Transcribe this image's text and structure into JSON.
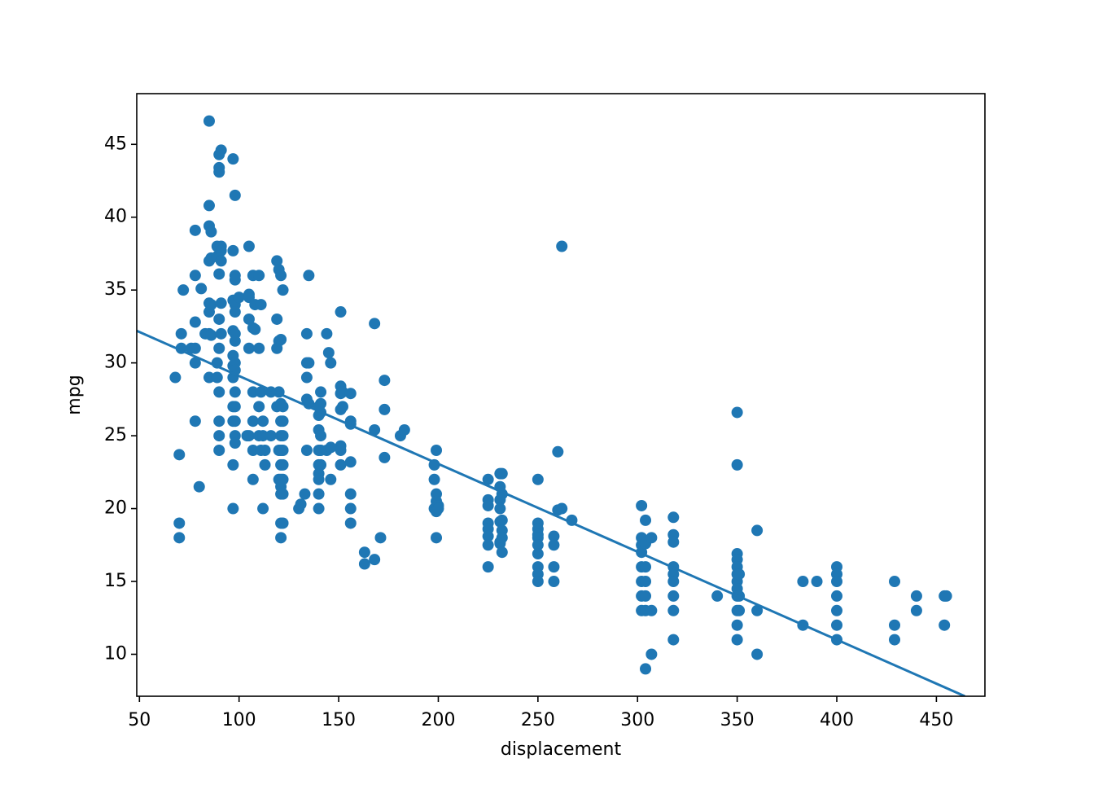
{
  "chart_data": {
    "type": "scatter",
    "xlabel": "displacement",
    "ylabel": "mpg",
    "color": "#1f77b4",
    "x": [
      68,
      70,
      70,
      70,
      71,
      71,
      72,
      76,
      78,
      78,
      78,
      78,
      78,
      78,
      80,
      81,
      83,
      85,
      85,
      85,
      85,
      85,
      85,
      85,
      85,
      86,
      86,
      86,
      86,
      89,
      89,
      89,
      89,
      90,
      90,
      90,
      90,
      90,
      90,
      90,
      90,
      90,
      90,
      91,
      91,
      91,
      91,
      91,
      91,
      97,
      97,
      97,
      97,
      97,
      97,
      97,
      97,
      97,
      97,
      97,
      98,
      98,
      98,
      98,
      98,
      98,
      98,
      98,
      98,
      98,
      98,
      98,
      98,
      98,
      100,
      104,
      105,
      105,
      105,
      105,
      105,
      105,
      107,
      107,
      107,
      107,
      107,
      107,
      108,
      108,
      110,
      110,
      110,
      110,
      111,
      111,
      111,
      112,
      112,
      112,
      113,
      113,
      116,
      116,
      119,
      119,
      119,
      119,
      120,
      120,
      120,
      120,
      120,
      121,
      121,
      121,
      121,
      121,
      121,
      121,
      121,
      121,
      121,
      121,
      121,
      122,
      122,
      122,
      122,
      122,
      122,
      122,
      122,
      122,
      130,
      131,
      133,
      134,
      134,
      134,
      134,
      134,
      135,
      135,
      135,
      140,
      140,
      140,
      140,
      140,
      140,
      140,
      140,
      140,
      141,
      141,
      141,
      141,
      141,
      141,
      144,
      144,
      145,
      146,
      146,
      146,
      151,
      151,
      151,
      151,
      151,
      151,
      151,
      152,
      152,
      156,
      156,
      156,
      156,
      156,
      156,
      156,
      163,
      163,
      168,
      168,
      168,
      171,
      173,
      173,
      173,
      181,
      183,
      198,
      198,
      198,
      199,
      199,
      199,
      199,
      199,
      200,
      200,
      225,
      225,
      225,
      225,
      225,
      225,
      225,
      225,
      231,
      231,
      231,
      231,
      231,
      231,
      231,
      232,
      232,
      232,
      232,
      232,
      232,
      250,
      250,
      250,
      250,
      250,
      250,
      250,
      250,
      250,
      250,
      258,
      258,
      258,
      258,
      260,
      260,
      262,
      262,
      267,
      302,
      302,
      302,
      302,
      302,
      302,
      302,
      302,
      304,
      304,
      304,
      304,
      304,
      304,
      304,
      307,
      307,
      307,
      318,
      318,
      318,
      318,
      318,
      318,
      318,
      318,
      318,
      340,
      350,
      350,
      350,
      350,
      350,
      350,
      350,
      350,
      350,
      350,
      350,
      350,
      351,
      351,
      351,
      360,
      360,
      360,
      383,
      383,
      390,
      400,
      400,
      400,
      400,
      400,
      400,
      400,
      429,
      429,
      429,
      440,
      440,
      454,
      454,
      455
    ],
    "y": [
      29,
      23.7,
      19,
      18,
      32,
      31,
      35,
      31,
      39.1,
      36,
      32.8,
      31,
      30,
      26,
      21.5,
      35.1,
      32,
      46.6,
      40.8,
      39.4,
      37,
      34.1,
      33.5,
      32,
      29,
      39,
      37.2,
      34,
      31.9,
      38,
      37.3,
      30,
      29,
      44.3,
      43.4,
      43.1,
      36.1,
      33,
      31,
      28,
      26,
      25,
      24,
      44.6,
      38,
      37.7,
      37,
      34.1,
      32,
      44,
      37.7,
      34.3,
      32.2,
      30.5,
      29.8,
      29,
      27,
      26,
      23,
      20,
      41.5,
      36,
      35.7,
      34,
      33.5,
      32,
      31.5,
      30,
      29.5,
      28,
      27,
      26,
      25,
      24.5,
      34.5,
      25,
      38,
      34.7,
      34.5,
      33,
      31,
      25,
      36,
      32.4,
      28,
      26,
      24,
      22,
      34,
      32.3,
      36,
      31,
      27,
      25,
      34,
      28,
      24,
      26,
      25,
      20,
      24,
      23,
      28,
      25,
      37,
      33,
      31,
      27,
      36.4,
      31.5,
      28,
      24,
      22,
      36,
      31.6,
      27.2,
      26,
      25,
      24,
      23,
      22,
      21.5,
      21,
      19,
      18,
      35,
      27,
      26,
      25,
      24,
      23,
      22,
      21,
      19,
      20,
      20.3,
      21,
      32,
      30,
      29,
      27.5,
      24,
      36,
      30,
      27.2,
      27,
      26.4,
      25.4,
      24,
      23,
      22.4,
      22,
      21,
      20,
      28,
      27.2,
      26.6,
      25,
      24,
      23,
      32,
      24,
      30.7,
      30,
      22,
      24.2,
      33.5,
      28.4,
      27.9,
      26.8,
      24.3,
      24,
      23,
      28,
      27,
      27.9,
      26,
      21,
      25.8,
      23.2,
      20,
      19,
      17,
      16.2,
      32.7,
      25.4,
      16.5,
      18,
      28.8,
      26.8,
      23.5,
      25,
      25.4,
      23,
      22,
      20,
      24,
      21,
      20.5,
      19.8,
      18,
      20.2,
      20,
      22,
      20.6,
      20.2,
      19,
      18.6,
      18.1,
      17.5,
      16,
      22.4,
      21.5,
      20.6,
      20,
      19.1,
      17.7,
      17.6,
      22.4,
      21,
      19.2,
      18.5,
      18,
      17,
      22,
      19,
      18.6,
      18.2,
      18,
      17.5,
      16.9,
      16,
      15.5,
      15,
      18.1,
      17.5,
      16,
      15,
      23.9,
      19.9,
      38,
      20,
      19.2,
      20.2,
      18,
      17.5,
      17,
      16,
      15,
      14,
      13,
      17.6,
      15,
      13,
      9,
      19.2,
      16,
      14,
      18,
      13,
      10,
      19.4,
      18.2,
      17.7,
      16,
      15.5,
      15,
      14,
      13,
      11,
      14,
      26.6,
      23,
      16.9,
      16.5,
      16,
      15.5,
      15,
      14.5,
      14,
      13,
      12,
      11,
      15.5,
      14,
      13,
      18.5,
      13,
      10,
      15,
      12,
      15,
      16,
      15.5,
      15,
      14,
      13,
      12,
      11,
      15,
      12,
      11,
      14,
      13,
      14,
      12,
      14
    ],
    "line": {
      "x": [
        48.65,
        464.3
      ],
      "y": [
        32.2,
        7.12
      ]
    },
    "xlim": [
      48.65,
      474.35
    ],
    "ylim": [
      7.12,
      48.48
    ],
    "xticks": [
      50,
      100,
      150,
      200,
      250,
      300,
      350,
      400,
      450
    ],
    "yticks": [
      10,
      15,
      20,
      25,
      30,
      35,
      40,
      45
    ]
  }
}
